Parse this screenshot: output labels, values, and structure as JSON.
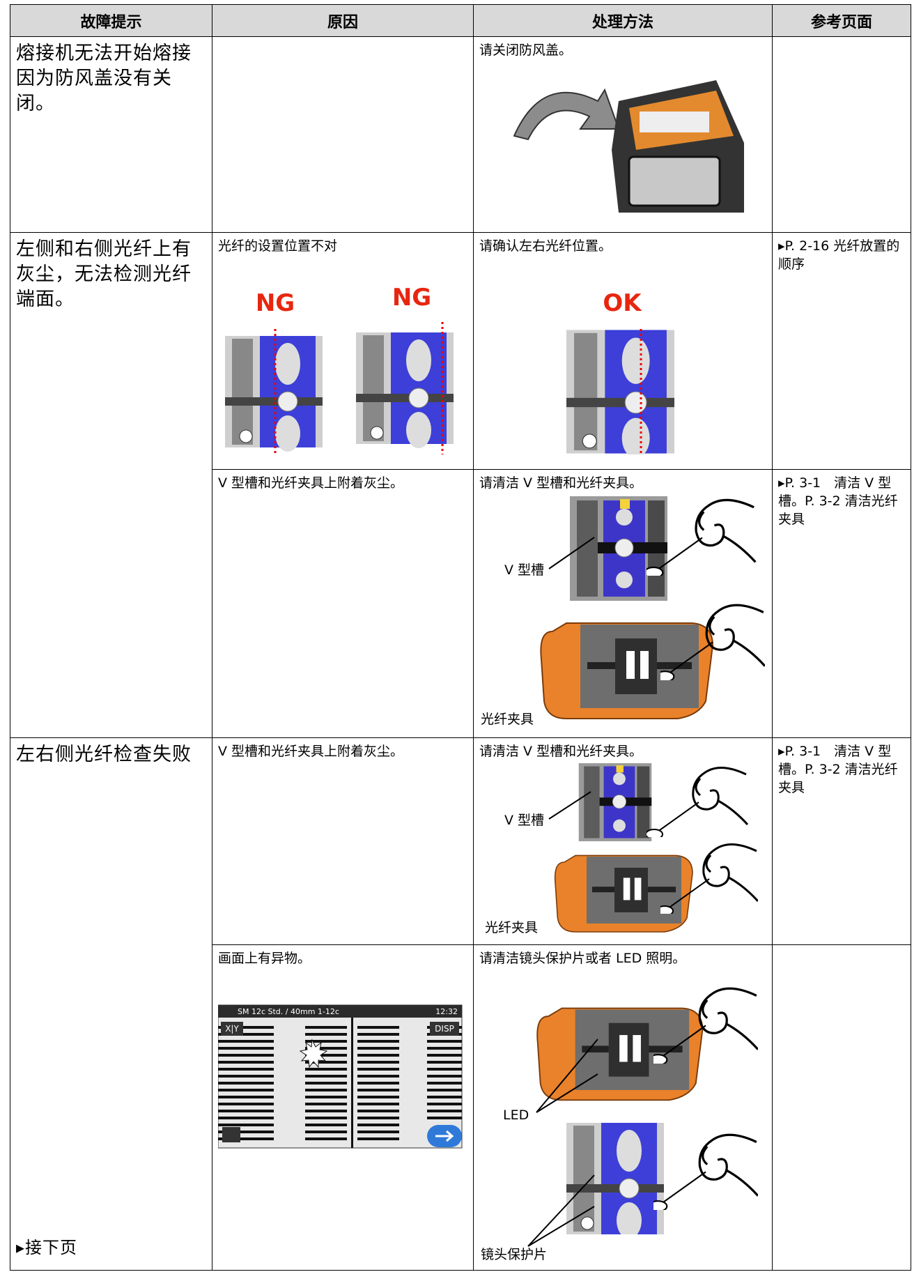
{
  "table": {
    "header": [
      "故障提示",
      "原因",
      "处理方法",
      "参考页面"
    ],
    "rows": [
      {
        "symptom": "熔接机无法开始熔接因为防风盖没有关闭。",
        "entries": [
          {
            "remedy": "请关闭防风盖。"
          }
        ]
      },
      {
        "symptom": "左侧和右侧光纤上有灰尘，无法检测光纤端面。",
        "entries": [
          {
            "cause": "光纤的设置位置不对",
            "cause_labels": [
              "NG",
              "NG"
            ],
            "remedy": "请确认左右光纤位置。",
            "remedy_labels": [
              "OK"
            ],
            "reference": "▸P. 2-16 光纤放置的顺序"
          },
          {
            "cause": "V 型槽和光纤夹具上附着灰尘。",
            "remedy": "请清洁 V 型槽和光纤夹具。",
            "remedy_labels": [
              "V 型槽",
              "光纤夹具"
            ],
            "reference": "▸P. 3-1　清洁 V 型槽。P. 3-2 清洁光纤夹具"
          }
        ]
      },
      {
        "symptom": "左右侧光纤检查失败",
        "note": "▸接下页",
        "entries": [
          {
            "cause": "V 型槽和光纤夹具上附着灰尘。",
            "remedy": "请清洁 V 型槽和光纤夹具。",
            "remedy_labels": [
              "V 型槽",
              "光纤夹具"
            ],
            "reference": "▸P. 3-1　清洁 V 型槽。P. 3-2 清洁光纤夹具"
          },
          {
            "cause": "画面上有异物。",
            "cause_labels": [
              "SM 12c Std. / 40mm 1-12c",
              "12:32",
              "X|Y",
              "DISP"
            ],
            "remedy": "请清洁镜头保护片或者 LED 照明。",
            "remedy_labels": [
              "LED",
              "镜头保护片"
            ]
          }
        ]
      }
    ]
  }
}
